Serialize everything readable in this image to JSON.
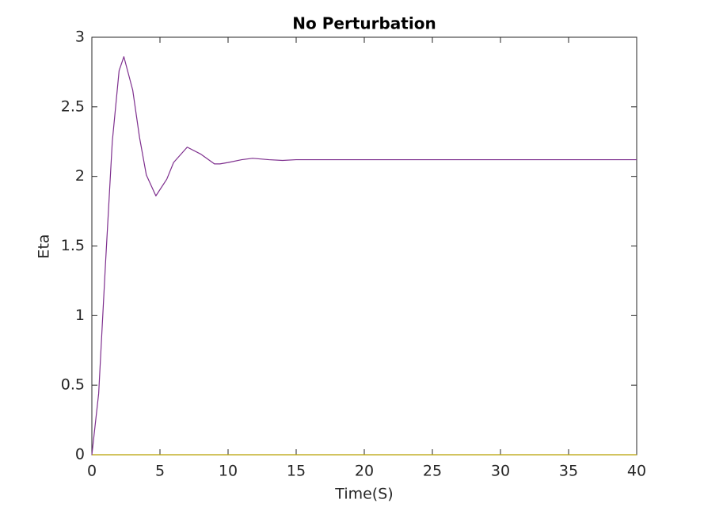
{
  "chart_data": {
    "type": "line",
    "title": "No Perturbation",
    "x_label": "Time(S)",
    "y_label": "Eta",
    "x": [
      0,
      0.5,
      1,
      1.5,
      2,
      2.35,
      3,
      3.5,
      4,
      4.7,
      5.5,
      6,
      7,
      8,
      9,
      9.4,
      10,
      11,
      11.8,
      13,
      14,
      15,
      17.5,
      20,
      25,
      30,
      35,
      40
    ],
    "series": [
      {
        "color": "#7e2f8e",
        "values": [
          0,
          0.44,
          1.37,
          2.25,
          2.76,
          2.86,
          2.62,
          2.28,
          2.01,
          1.86,
          1.98,
          2.1,
          2.21,
          2.16,
          2.09,
          2.09,
          2.1,
          2.12,
          2.13,
          2.12,
          2.115,
          2.12,
          2.12,
          2.12,
          2.12,
          2.12,
          2.12,
          2.12
        ]
      },
      {
        "color": "#b8a000",
        "values": [
          0,
          0,
          0,
          0,
          0,
          0,
          0,
          0,
          0,
          0,
          0,
          0,
          0,
          0,
          0,
          0,
          0,
          0,
          0,
          0,
          0,
          0,
          0,
          0,
          0,
          0,
          0,
          0
        ]
      }
    ],
    "xlim": [
      0,
      40
    ],
    "xticks": [
      0,
      5,
      10,
      15,
      20,
      25,
      30,
      35,
      40
    ],
    "ylim": [
      0,
      3
    ],
    "yticks": [
      0,
      0.5,
      1,
      1.5,
      2,
      2.5,
      3
    ]
  }
}
